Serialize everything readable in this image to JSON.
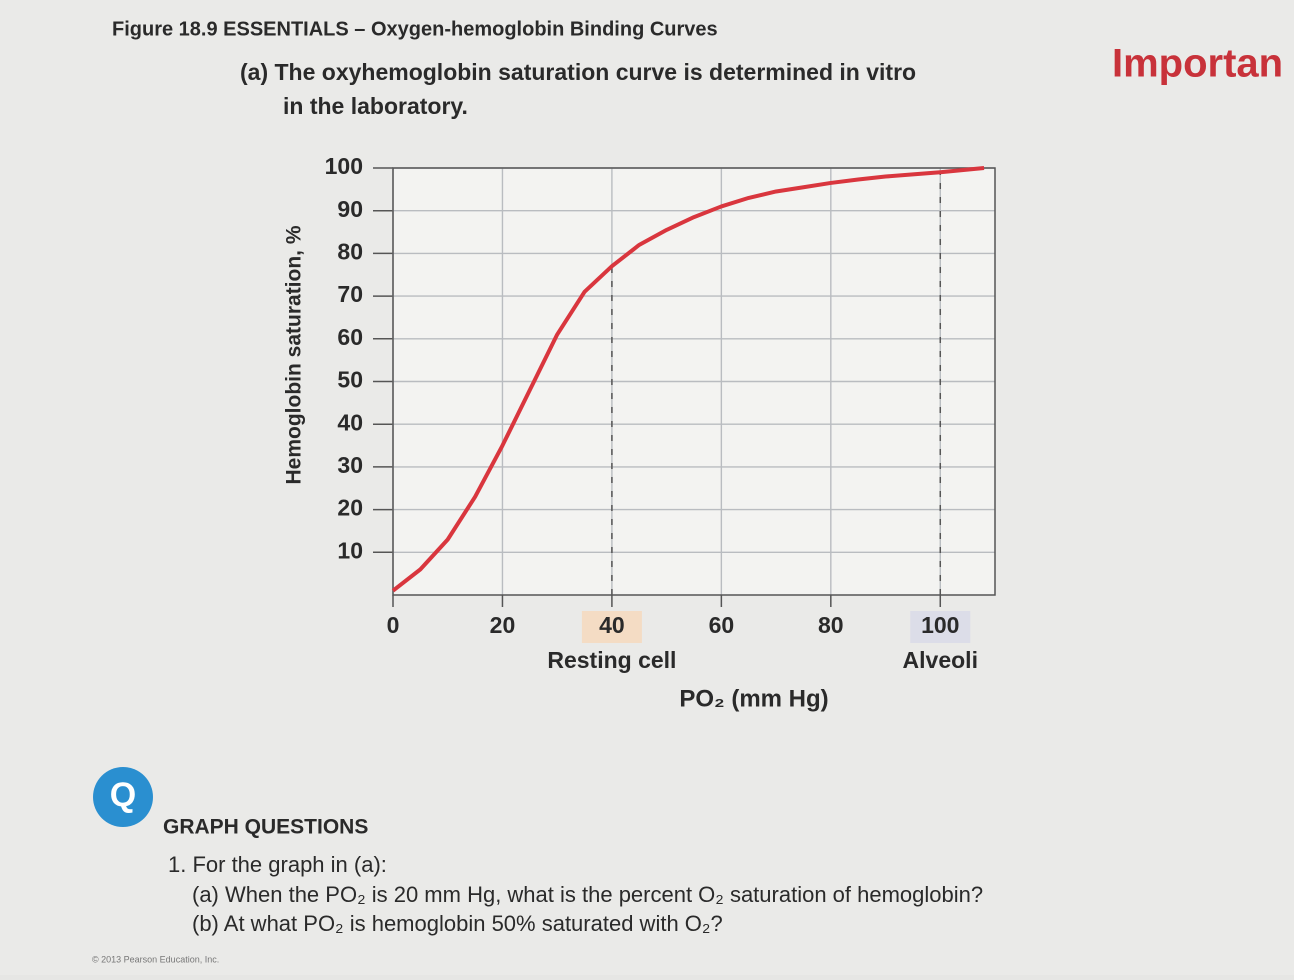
{
  "figure_title": "Figure 18.9 ESSENTIALS – Oxygen-hemoglobin Binding Curves",
  "side_note": "Importan",
  "chart_data": {
    "type": "line",
    "title_line1": "(a) The oxyhemoglobin saturation curve is determined in vitro",
    "title_line2": "in the laboratory.",
    "ylabel": "Hemoglobin saturation, %",
    "xlabel": "PO₂ (mm Hg)",
    "x": [
      0,
      5,
      10,
      15,
      20,
      25,
      30,
      35,
      40,
      45,
      50,
      55,
      60,
      65,
      70,
      75,
      80,
      85,
      90,
      95,
      100,
      108
    ],
    "series": [
      {
        "name": "Oxyhemoglobin saturation",
        "color": "#d9363e",
        "values": [
          1,
          6,
          13,
          23,
          35,
          48,
          61,
          71,
          77,
          82,
          85.5,
          88.5,
          91,
          93,
          94.5,
          95.5,
          96.5,
          97.3,
          98,
          98.5,
          99,
          100
        ]
      }
    ],
    "xlim": [
      0,
      110
    ],
    "ylim": [
      0,
      100
    ],
    "xticks": [
      0,
      20,
      40,
      60,
      80,
      100
    ],
    "yticks": [
      10,
      20,
      30,
      40,
      50,
      60,
      70,
      80,
      90,
      100
    ],
    "grid": true,
    "annotations": [
      {
        "x": 40,
        "label": "Resting cell"
      },
      {
        "x": 100,
        "label": "Alveoli"
      }
    ]
  },
  "questions": {
    "heading": "GRAPH QUESTIONS",
    "item": "1. For the graph in (a):",
    "a": "(a) When the PO₂ is 20 mm Hg, what is the percent O₂ saturation of hemoglobin?",
    "b": "(b) At what PO₂ is hemoglobin 50% saturated with O₂?"
  },
  "copyright": "© 2013 Pearson Education, Inc."
}
